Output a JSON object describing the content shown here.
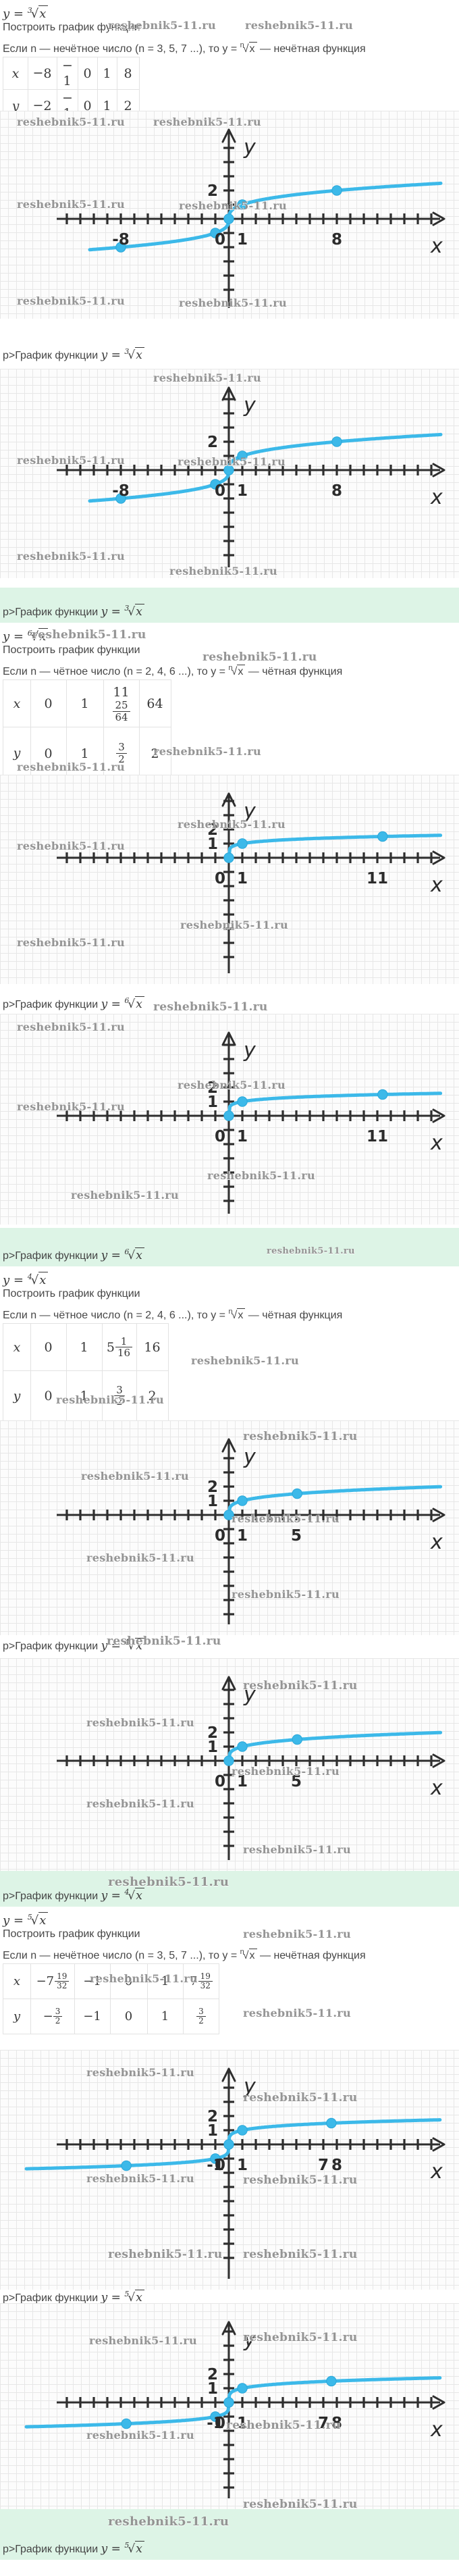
{
  "watermark": "reshebnik5-11.ru",
  "labels": {
    "build": "Построить график функции",
    "caption_prefix": "p>График функции",
    "axis_x": "x",
    "axis_y": "y"
  },
  "sections": [
    {
      "id": "cube-root",
      "formula": {
        "lhs": "y",
        "index": "3",
        "radicand": "x"
      },
      "condition": {
        "text1": "Если n — нечётное число (n = 3, 5, 7 ...), то y = ",
        "index": "n",
        "radicand": "x",
        "text2": " — нечётная функция"
      },
      "table": {
        "row_labels": [
          "x",
          "y"
        ],
        "x": [
          "-8",
          "-1",
          "0",
          "1",
          "8"
        ],
        "y": [
          "-2",
          "-1",
          "0",
          "1",
          "2"
        ]
      }
    },
    {
      "id": "sixth-root",
      "formula": {
        "lhs": "y",
        "index": "6",
        "radicand": "x"
      },
      "condition": {
        "text1": "Если n — чётное число (n = 2, 4, 6 ...), то y = ",
        "index": "n",
        "radicand": "x",
        "text2": " — чётная функция"
      },
      "table": {
        "row_labels": [
          "x",
          "y"
        ],
        "x": [
          "0",
          "1",
          "11 25/64",
          "64"
        ],
        "y": [
          "0",
          "1",
          "3/2",
          "2"
        ]
      }
    },
    {
      "id": "fourth-root",
      "formula": {
        "lhs": "y",
        "index": "4",
        "radicand": "x"
      },
      "condition": {
        "text1": "Если n — чётное число (n = 2, 4, 6 ...), то y = ",
        "index": "n",
        "radicand": "x",
        "text2": " — чётная функция"
      },
      "table": {
        "row_labels": [
          "x",
          "y"
        ],
        "x": [
          "0",
          "1",
          "5 1/16",
          "16"
        ],
        "y": [
          "0",
          "1",
          "3/2",
          "2"
        ]
      }
    },
    {
      "id": "fifth-root",
      "formula": {
        "lhs": "y",
        "index": "5",
        "radicand": "x"
      },
      "condition": {
        "text1": "Если n — нечётное число (n = 3, 5, 7 ...), то y = ",
        "index": "n",
        "radicand": "x",
        "text2": " — нечётная функция"
      },
      "table": {
        "row_labels": [
          "x",
          "y"
        ],
        "x": [
          "-7 19/32",
          "-1",
          "0",
          "1",
          "7 19/32"
        ],
        "y": [
          "-3/2",
          "-1",
          "0",
          "1",
          "3/2"
        ]
      }
    }
  ],
  "chart_data": [
    {
      "id": "graph-1",
      "section": "cube-root",
      "type": "line",
      "function": "y = x^(1/3)",
      "root_index": 3,
      "parity": "odd",
      "color": "#3cb9e9",
      "domain": [
        -10.3,
        15.7
      ],
      "points": [
        [
          -8,
          -2
        ],
        [
          -1,
          -1
        ],
        [
          0,
          0
        ],
        [
          1,
          1
        ],
        [
          8,
          2
        ]
      ],
      "x_tick_labels": [
        {
          "v": -8,
          "t": "-8"
        },
        {
          "v": 0,
          "t": "0"
        },
        {
          "v": 1,
          "t": "1"
        },
        {
          "v": 8,
          "t": "8"
        }
      ],
      "y_tick_labels": [
        {
          "v": 2,
          "t": "2"
        }
      ],
      "xlabel": "x",
      "ylabel": "y",
      "grid": true
    },
    {
      "id": "graph-2",
      "section": "cube-root",
      "type": "line",
      "function": "y = x^(1/3)",
      "root_index": 3,
      "parity": "odd",
      "color": "#3cb9e9",
      "domain": [
        -10.3,
        15.7
      ],
      "points": [
        [
          -8,
          -2
        ],
        [
          -1,
          -1
        ],
        [
          0,
          0
        ],
        [
          1,
          1
        ],
        [
          8,
          2
        ]
      ],
      "x_tick_labels": [
        {
          "v": -8,
          "t": "-8"
        },
        {
          "v": 0,
          "t": "0"
        },
        {
          "v": 1,
          "t": "1"
        },
        {
          "v": 8,
          "t": "8"
        }
      ],
      "y_tick_labels": [
        {
          "v": 2,
          "t": "2"
        }
      ],
      "xlabel": "x",
      "ylabel": "y",
      "grid": true
    },
    {
      "id": "graph-3",
      "section": "sixth-root",
      "type": "line",
      "function": "y = x^(1/6)",
      "root_index": 6,
      "parity": "even",
      "color": "#3cb9e9",
      "domain": [
        0,
        15.7
      ],
      "points": [
        [
          0,
          0
        ],
        [
          1,
          1
        ],
        [
          11.390625,
          1.5
        ]
      ],
      "x_tick_labels": [
        {
          "v": 0,
          "t": "0"
        },
        {
          "v": 1,
          "t": "1"
        },
        {
          "v": 11,
          "t": "11"
        }
      ],
      "y_tick_labels": [
        {
          "v": 1,
          "t": "1"
        },
        {
          "v": 2,
          "t": "2"
        }
      ],
      "xlabel": "x",
      "ylabel": "y",
      "grid": true
    },
    {
      "id": "graph-4",
      "section": "sixth-root",
      "type": "line",
      "function": "y = x^(1/6)",
      "root_index": 6,
      "parity": "even",
      "color": "#3cb9e9",
      "domain": [
        0,
        15.7
      ],
      "points": [
        [
          0,
          0
        ],
        [
          1,
          1
        ],
        [
          11.390625,
          1.5
        ]
      ],
      "x_tick_labels": [
        {
          "v": 0,
          "t": "0"
        },
        {
          "v": 1,
          "t": "1"
        },
        {
          "v": 11,
          "t": "11"
        }
      ],
      "y_tick_labels": [
        {
          "v": 1,
          "t": "1"
        },
        {
          "v": 2,
          "t": "2"
        }
      ],
      "xlabel": "x",
      "ylabel": "y",
      "grid": true
    },
    {
      "id": "graph-5",
      "section": "fourth-root",
      "type": "line",
      "function": "y = x^(1/4)",
      "root_index": 4,
      "parity": "even",
      "color": "#3cb9e9",
      "domain": [
        0,
        15.7
      ],
      "points": [
        [
          0,
          0
        ],
        [
          1,
          1
        ],
        [
          5.0625,
          1.5
        ]
      ],
      "x_tick_labels": [
        {
          "v": 0,
          "t": "0"
        },
        {
          "v": 1,
          "t": "1"
        },
        {
          "v": 5,
          "t": "5"
        }
      ],
      "y_tick_labels": [
        {
          "v": 1,
          "t": "1"
        },
        {
          "v": 2,
          "t": "2"
        }
      ],
      "xlabel": "x",
      "ylabel": "y",
      "grid": true
    },
    {
      "id": "graph-6",
      "section": "fourth-root",
      "type": "line",
      "function": "y = x^(1/4)",
      "root_index": 4,
      "parity": "even",
      "color": "#3cb9e9",
      "domain": [
        0,
        15.7
      ],
      "points": [
        [
          0,
          0
        ],
        [
          1,
          1
        ],
        [
          5.0625,
          1.5
        ]
      ],
      "x_tick_labels": [
        {
          "v": 0,
          "t": "0"
        },
        {
          "v": 1,
          "t": "1"
        },
        {
          "v": 5,
          "t": "5"
        }
      ],
      "y_tick_labels": [
        {
          "v": 1,
          "t": "1"
        },
        {
          "v": 2,
          "t": "2"
        }
      ],
      "xlabel": "x",
      "ylabel": "y",
      "grid": true
    },
    {
      "id": "graph-7",
      "section": "fifth-root",
      "type": "line",
      "function": "y = x^(1/5)",
      "root_index": 5,
      "parity": "odd",
      "color": "#3cb9e9",
      "domain": [
        -15.0,
        15.7
      ],
      "points": [
        [
          -7.59375,
          -1.5
        ],
        [
          -1,
          -1
        ],
        [
          0,
          0
        ],
        [
          1,
          1
        ],
        [
          7.59375,
          1.5
        ]
      ],
      "x_tick_labels": [
        {
          "v": -1,
          "t": "-1"
        },
        {
          "v": 0,
          "t": "0"
        },
        {
          "v": 1,
          "t": "1"
        },
        {
          "v": 7,
          "t": "7"
        },
        {
          "v": 8,
          "t": "8"
        }
      ],
      "y_tick_labels": [
        {
          "v": 1,
          "t": "1"
        },
        {
          "v": 2,
          "t": "2"
        }
      ],
      "xlabel": "x",
      "ylabel": "y",
      "grid": true
    },
    {
      "id": "graph-8",
      "section": "fifth-root",
      "type": "line",
      "function": "y = x^(1/5)",
      "root_index": 5,
      "parity": "odd",
      "color": "#3cb9e9",
      "domain": [
        -15.0,
        15.7
      ],
      "points": [
        [
          -7.59375,
          -1.5
        ],
        [
          -1,
          -1
        ],
        [
          0,
          0
        ],
        [
          1,
          1
        ],
        [
          7.59375,
          1.5
        ]
      ],
      "x_tick_labels": [
        {
          "v": -1,
          "t": "-1"
        },
        {
          "v": 0,
          "t": "0"
        },
        {
          "v": 1,
          "t": "1"
        },
        {
          "v": 7,
          "t": "7"
        },
        {
          "v": 8,
          "t": "8"
        }
      ],
      "y_tick_labels": [
        {
          "v": 1,
          "t": "1"
        },
        {
          "v": 2,
          "t": "2"
        }
      ],
      "xlabel": "x",
      "ylabel": "y",
      "grid": true
    }
  ]
}
